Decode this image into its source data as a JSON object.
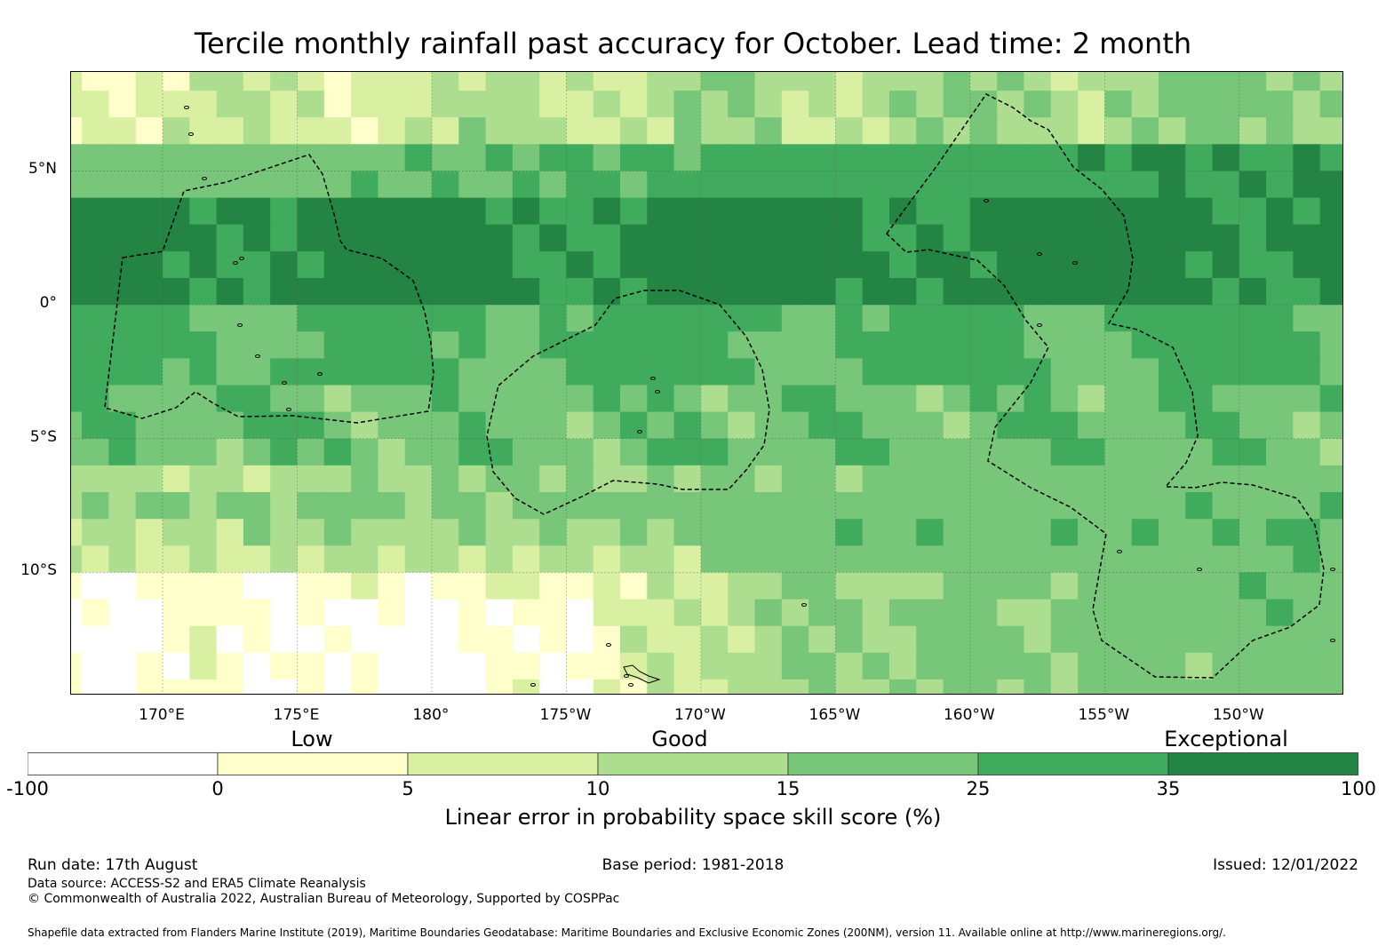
{
  "title": "Tercile monthly rainfall past accuracy for October. Lead time: 2 month",
  "map": {
    "lat_labels": [
      {
        "text": "5°N",
        "lat": 5
      },
      {
        "text": "0°",
        "lat": 0
      },
      {
        "text": "5°S",
        "lat": -5
      },
      {
        "text": "10°S",
        "lat": -10
      }
    ],
    "lon_labels": [
      {
        "text": "170°E",
        "lon": 170
      },
      {
        "text": "175°E",
        "lon": 175
      },
      {
        "text": "180°",
        "lon": 180
      },
      {
        "text": "175°W",
        "lon": 185
      },
      {
        "text": "170°W",
        "lon": 190
      },
      {
        "text": "165°W",
        "lon": 195
      },
      {
        "text": "160°W",
        "lon": 200
      },
      {
        "text": "155°W",
        "lon": 205
      },
      {
        "text": "150°W",
        "lon": 210
      }
    ],
    "lon_range": [
      166.6,
      213.9
    ],
    "lat_range": [
      -14.6,
      8.7
    ]
  },
  "legend": {
    "category_labels": {
      "low": "Low",
      "good": "Good",
      "exceptional": "Exceptional"
    },
    "bins": [
      {
        "from": "-100",
        "to": "0",
        "color": "#ffffff"
      },
      {
        "from": "0",
        "to": "5",
        "color": "#ffffcc"
      },
      {
        "from": "5",
        "to": "10",
        "color": "#d9f0a3"
      },
      {
        "from": "10",
        "to": "15",
        "color": "#addd8e"
      },
      {
        "from": "15",
        "to": "25",
        "color": "#78c679"
      },
      {
        "from": "25",
        "to": "35",
        "color": "#41ab5d"
      },
      {
        "from": "35",
        "to": "100",
        "color": "#238443"
      }
    ],
    "tick_labels": [
      "-100",
      "0",
      "5",
      "10",
      "15",
      "25",
      "35",
      "100"
    ],
    "label": "Linear error in probability space skill score (%)"
  },
  "footer": {
    "run_date": "Run date: 17th August",
    "base_period": "Base period: 1981-2018",
    "issued": "Issued: 12/01/2022",
    "data_source": "Data source: ACCESS-S2 and ERA5 Climate Reanalysis",
    "copyright": "© Commonwealth of Australia 2022, Australian Bureau of Meteorology, Supported by COSPPac",
    "shapefile": "Shapefile data extracted from Flanders Marine Institute (2019), Maritime Boundaries Geodatabase: Maritime Boundaries and Exclusive Economic Zones (200NM), version 11. Available online at http://www.marineregions.org/."
  }
}
